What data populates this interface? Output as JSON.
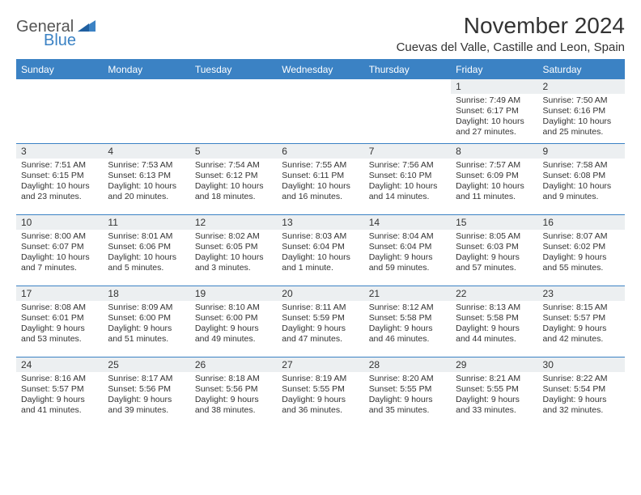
{
  "brand": {
    "text1": "General",
    "text2": "Blue",
    "accent_color": "#3b82c4"
  },
  "title": "November 2024",
  "location": "Cuevas del Valle, Castille and Leon, Spain",
  "weekdays": [
    "Sunday",
    "Monday",
    "Tuesday",
    "Wednesday",
    "Thursday",
    "Friday",
    "Saturday"
  ],
  "calendar": {
    "header_bg": "#3b82c4",
    "daynum_bg": "#eceff1",
    "border_color": "#3b82c4",
    "font_size_header": 12,
    "font_size_daynum": 12,
    "font_size_body": 10.5,
    "weeks": [
      [
        null,
        null,
        null,
        null,
        null,
        {
          "n": "1",
          "sunrise": "7:49 AM",
          "sunset": "6:17 PM",
          "daylight": "10 hours and 27 minutes."
        },
        {
          "n": "2",
          "sunrise": "7:50 AM",
          "sunset": "6:16 PM",
          "daylight": "10 hours and 25 minutes."
        }
      ],
      [
        {
          "n": "3",
          "sunrise": "7:51 AM",
          "sunset": "6:15 PM",
          "daylight": "10 hours and 23 minutes."
        },
        {
          "n": "4",
          "sunrise": "7:53 AM",
          "sunset": "6:13 PM",
          "daylight": "10 hours and 20 minutes."
        },
        {
          "n": "5",
          "sunrise": "7:54 AM",
          "sunset": "6:12 PM",
          "daylight": "10 hours and 18 minutes."
        },
        {
          "n": "6",
          "sunrise": "7:55 AM",
          "sunset": "6:11 PM",
          "daylight": "10 hours and 16 minutes."
        },
        {
          "n": "7",
          "sunrise": "7:56 AM",
          "sunset": "6:10 PM",
          "daylight": "10 hours and 14 minutes."
        },
        {
          "n": "8",
          "sunrise": "7:57 AM",
          "sunset": "6:09 PM",
          "daylight": "10 hours and 11 minutes."
        },
        {
          "n": "9",
          "sunrise": "7:58 AM",
          "sunset": "6:08 PM",
          "daylight": "10 hours and 9 minutes."
        }
      ],
      [
        {
          "n": "10",
          "sunrise": "8:00 AM",
          "sunset": "6:07 PM",
          "daylight": "10 hours and 7 minutes."
        },
        {
          "n": "11",
          "sunrise": "8:01 AM",
          "sunset": "6:06 PM",
          "daylight": "10 hours and 5 minutes."
        },
        {
          "n": "12",
          "sunrise": "8:02 AM",
          "sunset": "6:05 PM",
          "daylight": "10 hours and 3 minutes."
        },
        {
          "n": "13",
          "sunrise": "8:03 AM",
          "sunset": "6:04 PM",
          "daylight": "10 hours and 1 minute."
        },
        {
          "n": "14",
          "sunrise": "8:04 AM",
          "sunset": "6:04 PM",
          "daylight": "9 hours and 59 minutes."
        },
        {
          "n": "15",
          "sunrise": "8:05 AM",
          "sunset": "6:03 PM",
          "daylight": "9 hours and 57 minutes."
        },
        {
          "n": "16",
          "sunrise": "8:07 AM",
          "sunset": "6:02 PM",
          "daylight": "9 hours and 55 minutes."
        }
      ],
      [
        {
          "n": "17",
          "sunrise": "8:08 AM",
          "sunset": "6:01 PM",
          "daylight": "9 hours and 53 minutes."
        },
        {
          "n": "18",
          "sunrise": "8:09 AM",
          "sunset": "6:00 PM",
          "daylight": "9 hours and 51 minutes."
        },
        {
          "n": "19",
          "sunrise": "8:10 AM",
          "sunset": "6:00 PM",
          "daylight": "9 hours and 49 minutes."
        },
        {
          "n": "20",
          "sunrise": "8:11 AM",
          "sunset": "5:59 PM",
          "daylight": "9 hours and 47 minutes."
        },
        {
          "n": "21",
          "sunrise": "8:12 AM",
          "sunset": "5:58 PM",
          "daylight": "9 hours and 46 minutes."
        },
        {
          "n": "22",
          "sunrise": "8:13 AM",
          "sunset": "5:58 PM",
          "daylight": "9 hours and 44 minutes."
        },
        {
          "n": "23",
          "sunrise": "8:15 AM",
          "sunset": "5:57 PM",
          "daylight": "9 hours and 42 minutes."
        }
      ],
      [
        {
          "n": "24",
          "sunrise": "8:16 AM",
          "sunset": "5:57 PM",
          "daylight": "9 hours and 41 minutes."
        },
        {
          "n": "25",
          "sunrise": "8:17 AM",
          "sunset": "5:56 PM",
          "daylight": "9 hours and 39 minutes."
        },
        {
          "n": "26",
          "sunrise": "8:18 AM",
          "sunset": "5:56 PM",
          "daylight": "9 hours and 38 minutes."
        },
        {
          "n": "27",
          "sunrise": "8:19 AM",
          "sunset": "5:55 PM",
          "daylight": "9 hours and 36 minutes."
        },
        {
          "n": "28",
          "sunrise": "8:20 AM",
          "sunset": "5:55 PM",
          "daylight": "9 hours and 35 minutes."
        },
        {
          "n": "29",
          "sunrise": "8:21 AM",
          "sunset": "5:55 PM",
          "daylight": "9 hours and 33 minutes."
        },
        {
          "n": "30",
          "sunrise": "8:22 AM",
          "sunset": "5:54 PM",
          "daylight": "9 hours and 32 minutes."
        }
      ]
    ]
  },
  "labels": {
    "sunrise": "Sunrise:",
    "sunset": "Sunset:",
    "daylight": "Daylight:"
  }
}
